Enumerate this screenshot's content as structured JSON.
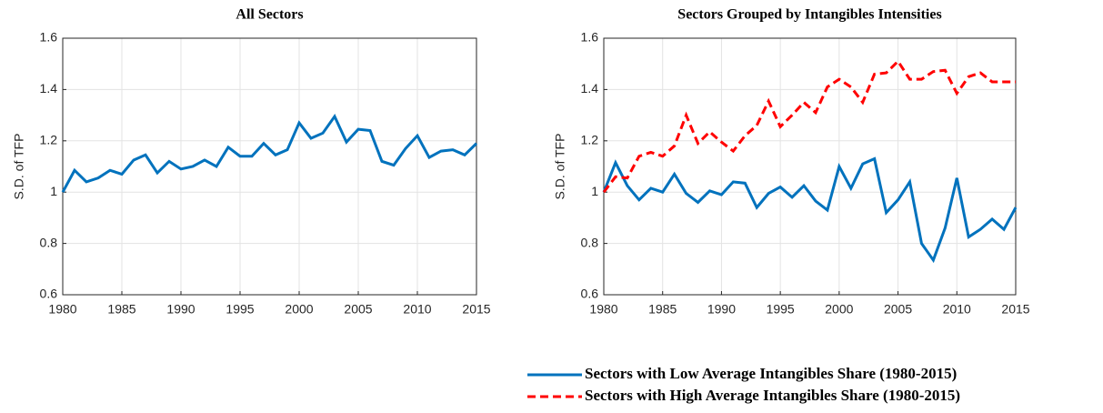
{
  "chart_data": [
    {
      "type": "line",
      "title": "All Sectors",
      "ylabel": "S.D. of TFP",
      "x": [
        1980,
        1981,
        1982,
        1983,
        1984,
        1985,
        1986,
        1987,
        1988,
        1989,
        1990,
        1991,
        1992,
        1993,
        1994,
        1995,
        1996,
        1997,
        1998,
        1999,
        2000,
        2001,
        2002,
        2003,
        2004,
        2005,
        2006,
        2007,
        2008,
        2009,
        2010,
        2011,
        2012,
        2013,
        2014,
        2015
      ],
      "values": [
        1.0,
        1.085,
        1.04,
        1.055,
        1.085,
        1.07,
        1.125,
        1.145,
        1.075,
        1.12,
        1.09,
        1.1,
        1.125,
        1.1,
        1.175,
        1.14,
        1.14,
        1.19,
        1.145,
        1.165,
        1.27,
        1.21,
        1.23,
        1.295,
        1.195,
        1.245,
        1.24,
        1.12,
        1.105,
        1.17,
        1.22,
        1.135,
        1.16,
        1.165,
        1.145,
        1.19
      ],
      "color": "#0072bd",
      "xlim": [
        1980,
        2015
      ],
      "xticks": [
        1980,
        1985,
        1990,
        1995,
        2000,
        2005,
        2010,
        2015
      ],
      "ylim": [
        0.6,
        1.6
      ],
      "yticks": [
        0.6,
        0.8,
        1,
        1.2,
        1.4,
        1.6
      ],
      "grid": true
    },
    {
      "type": "line",
      "title": "Sectors Grouped by Intangibles Intensities",
      "ylabel": "S.D. of TFP",
      "x": [
        1980,
        1981,
        1982,
        1983,
        1984,
        1985,
        1986,
        1987,
        1988,
        1989,
        1990,
        1991,
        1992,
        1993,
        1994,
        1995,
        1996,
        1997,
        1998,
        1999,
        2000,
        2001,
        2002,
        2003,
        2004,
        2005,
        2006,
        2007,
        2008,
        2009,
        2010,
        2011,
        2012,
        2013,
        2014,
        2015
      ],
      "series": [
        {
          "name": "Sectors with Low Average Intangibles Share (1980-2015)",
          "color": "#0072bd",
          "dash": false,
          "values": [
            1.0,
            1.115,
            1.025,
            0.97,
            1.015,
            1.0,
            1.07,
            0.995,
            0.96,
            1.005,
            0.99,
            1.04,
            1.035,
            0.94,
            0.995,
            1.02,
            0.98,
            1.025,
            0.965,
            0.93,
            1.1,
            1.015,
            1.11,
            1.13,
            0.92,
            0.97,
            1.04,
            0.8,
            0.735,
            0.86,
            1.055,
            0.825,
            0.855,
            0.895,
            0.855,
            0.94
          ]
        },
        {
          "name": "Sectors with High Average Intangibles Share (1980-2015)",
          "color": "#ff0000",
          "dash": true,
          "values": [
            1.0,
            1.06,
            1.055,
            1.14,
            1.155,
            1.14,
            1.18,
            1.3,
            1.19,
            1.235,
            1.195,
            1.16,
            1.22,
            1.26,
            1.355,
            1.255,
            1.3,
            1.35,
            1.31,
            1.41,
            1.44,
            1.41,
            1.35,
            1.46,
            1.465,
            1.51,
            1.44,
            1.44,
            1.47,
            1.475,
            1.385,
            1.45,
            1.465,
            1.43,
            1.43,
            1.43
          ]
        }
      ],
      "xlim": [
        1980,
        2015
      ],
      "xticks": [
        1980,
        1985,
        1990,
        1995,
        2000,
        2005,
        2010,
        2015
      ],
      "ylim": [
        0.6,
        1.6
      ],
      "yticks": [
        0.6,
        0.8,
        1,
        1.2,
        1.4,
        1.6
      ],
      "grid": true,
      "legend": "bottom-right"
    }
  ]
}
